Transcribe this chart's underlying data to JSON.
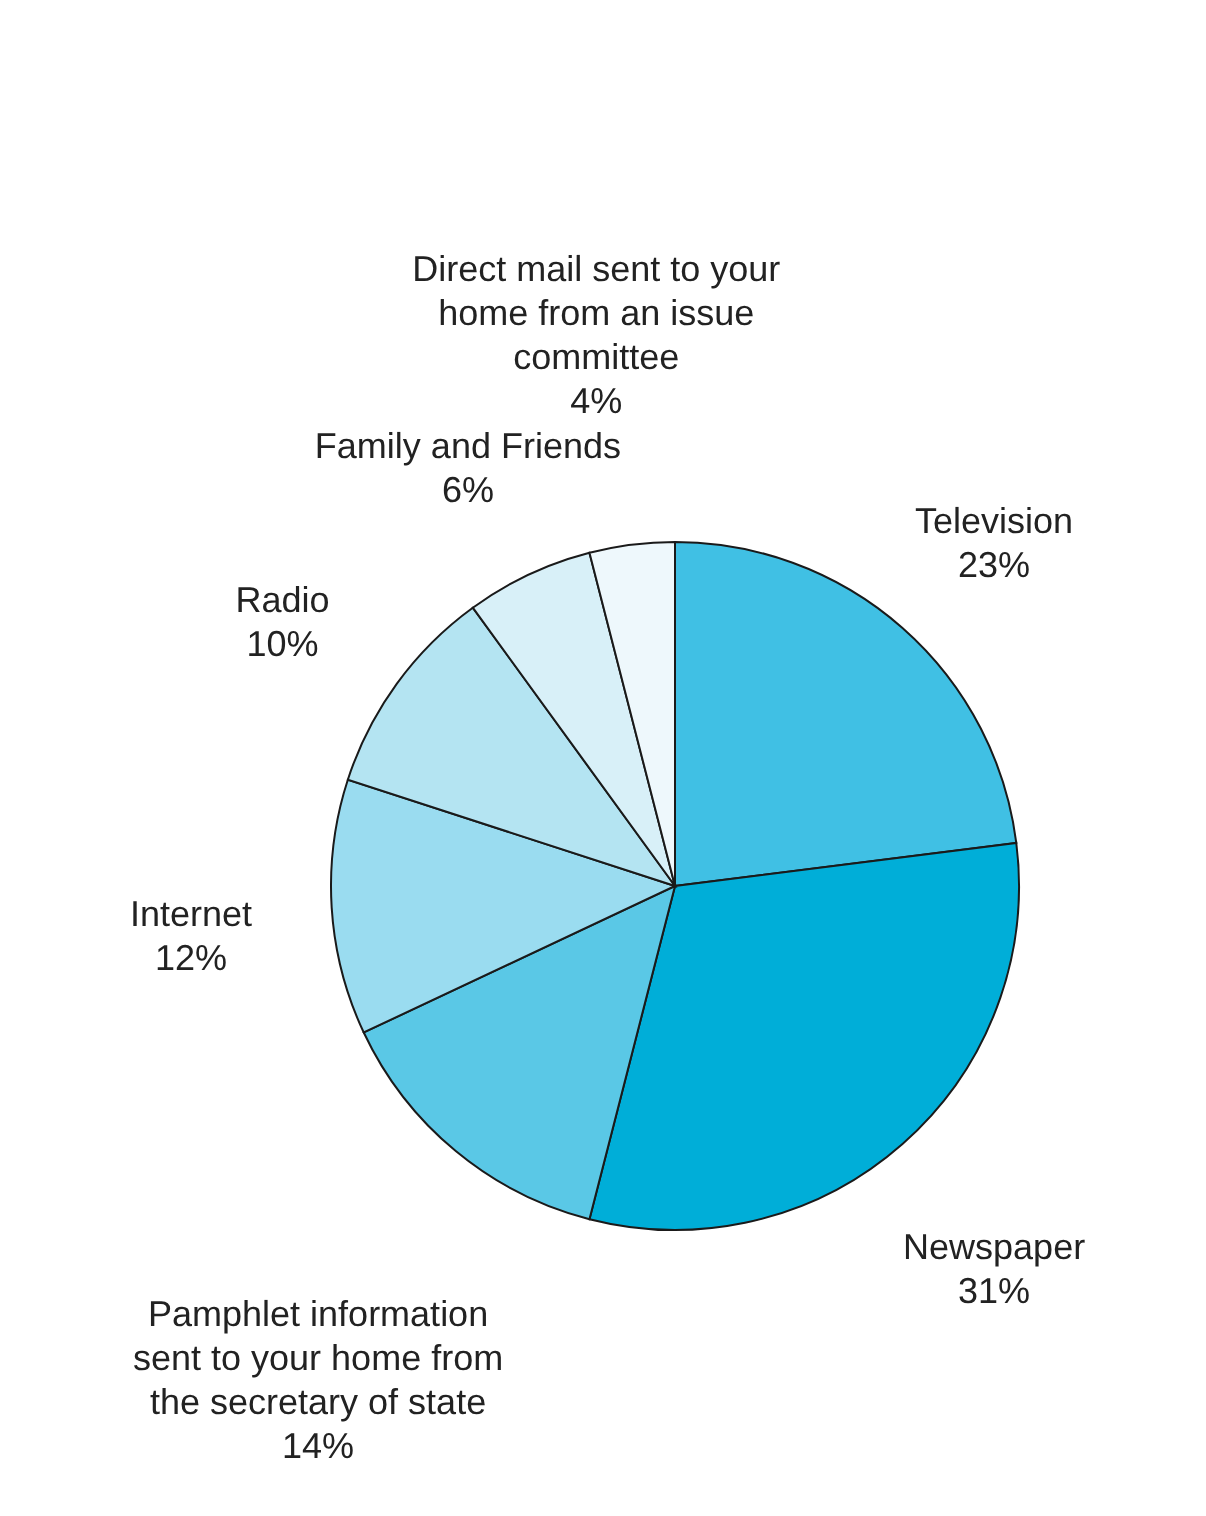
{
  "chart_data": {
    "type": "pie",
    "categories": [
      "Television",
      "Newspaper",
      "Pamphlet information sent to your home from the secretary of state",
      "Internet",
      "Radio",
      "Family and Friends",
      "Direct mail sent to your home from an issue committee"
    ],
    "values": [
      23,
      31,
      14,
      12,
      10,
      6,
      4
    ],
    "value_labels": [
      "23%",
      "31%",
      "14%",
      "12%",
      "10%",
      "6%",
      "4%"
    ],
    "colors": [
      "#40c0e4",
      "#00aed8",
      "#5ac8e6",
      "#9adcf0",
      "#b4e4f2",
      "#d8f0f8",
      "#eef8fc"
    ]
  }
}
